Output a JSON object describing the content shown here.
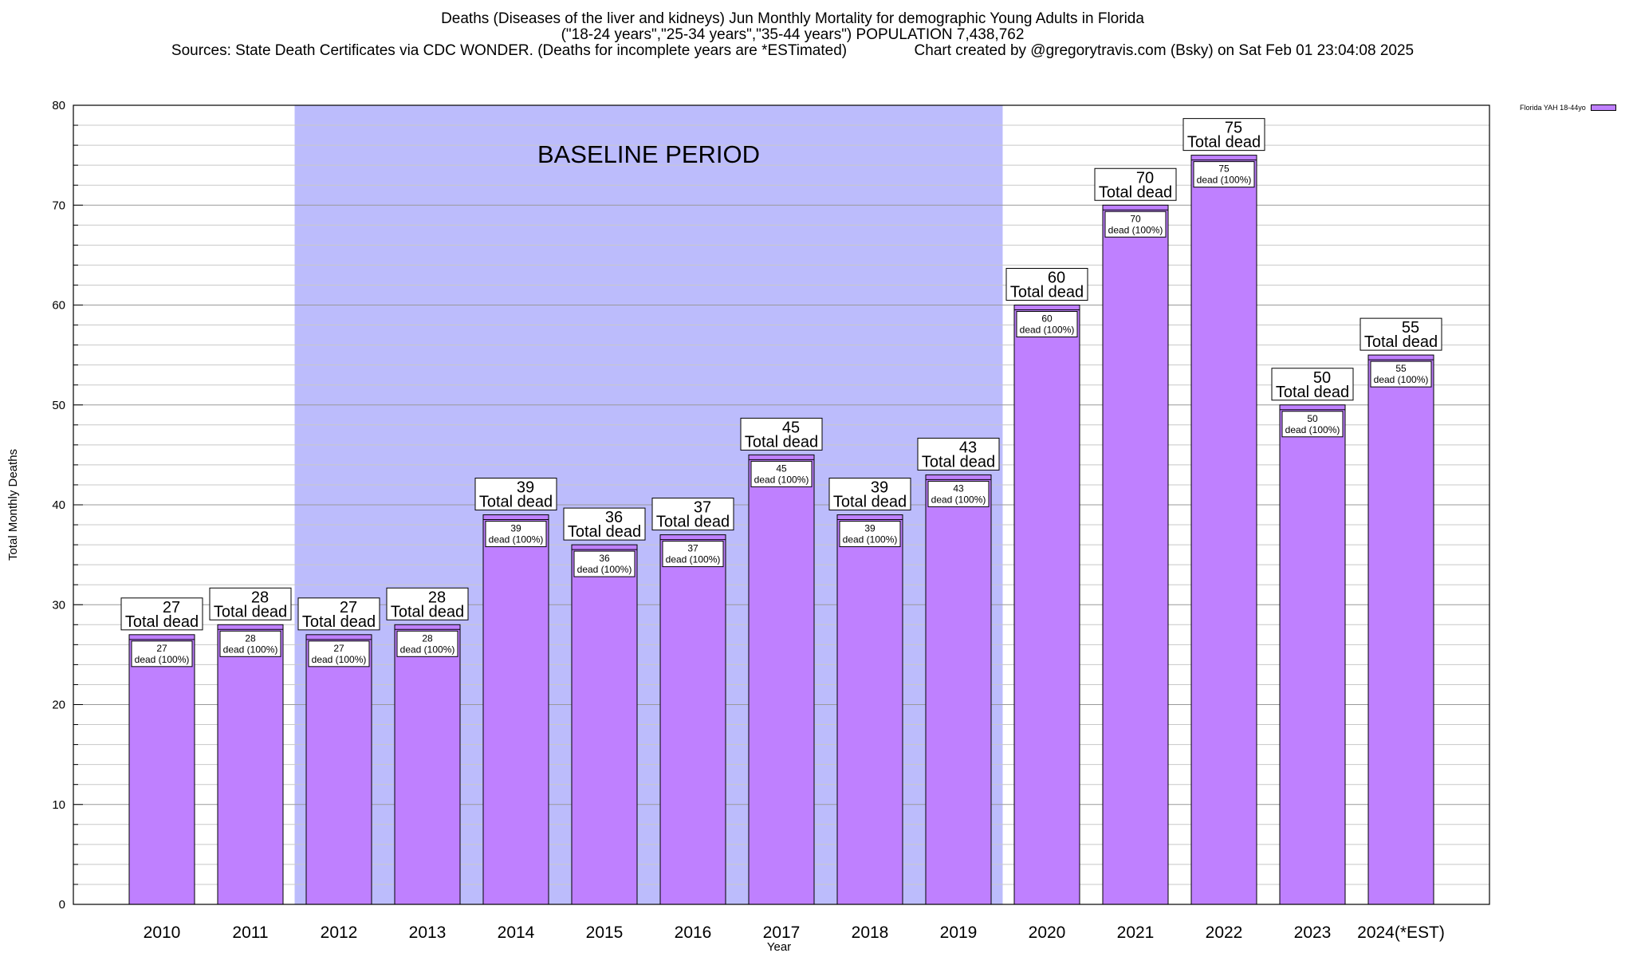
{
  "title_lines": [
    "Deaths (Diseases of the liver and kidneys) Jun Monthly Mortality for demographic Young Adults in Florida",
    "(\"18-24 years\",\"25-34 years\",\"35-44 years\") POPULATION 7,438,762",
    "Sources: State Death Certificates via CDC WONDER. (Deaths for incomplete years are *ESTimated)                Chart created by @gregorytravis.com (Bsky) on Sat Feb 01 23:04:08 2025"
  ],
  "legend": {
    "label": "Florida YAH 18-44yo",
    "color": "#bf80ff"
  },
  "chart_data": {
    "type": "bar",
    "xlabel": "Year",
    "ylabel": "Total Monthly Deaths",
    "ylim": [
      0,
      80
    ],
    "yticks": [
      0,
      10,
      20,
      30,
      40,
      50,
      60,
      70,
      80
    ],
    "grid": true,
    "legend_position": "top-right",
    "categories": [
      "2010",
      "2011",
      "2012",
      "2013",
      "2014",
      "2015",
      "2016",
      "2017",
      "2018",
      "2019",
      "2020",
      "2021",
      "2022",
      "2023",
      "2024(*EST)"
    ],
    "series": [
      {
        "name": "Florida YAH 18-44yo",
        "values": [
          27,
          28,
          27,
          28,
          39,
          36,
          37,
          45,
          39,
          43,
          60,
          70,
          75,
          50,
          55
        ]
      }
    ],
    "bar_color": "#bf80ff",
    "baseline_band": {
      "label": "BASELINE PERIOD",
      "from": "2012",
      "to": "2019",
      "color": "#bcbcfc"
    },
    "total_label_suffix": "Total dead",
    "inner_label_suffix": "dead (100%)"
  }
}
